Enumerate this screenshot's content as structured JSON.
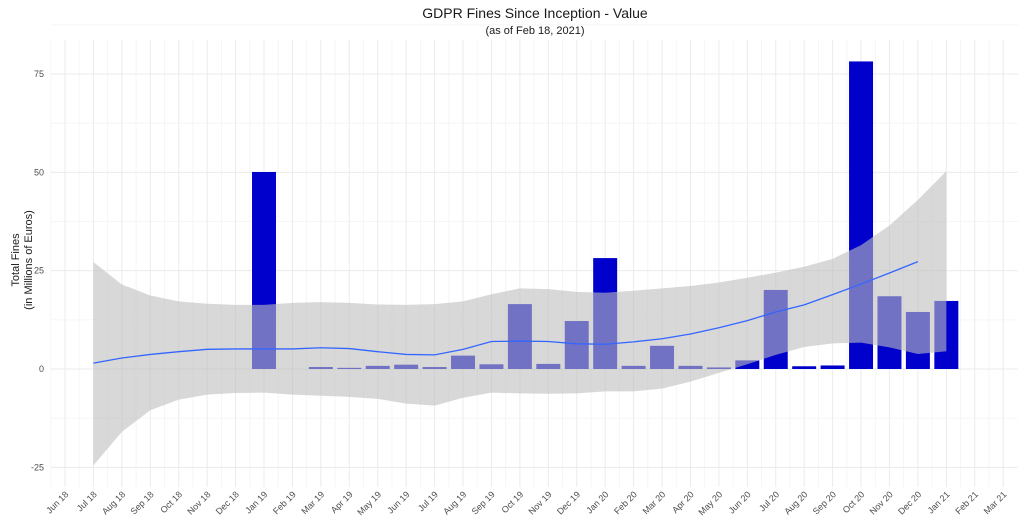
{
  "chart_data": {
    "type": "bar",
    "title": "GDPR Fines Since Inception - Value",
    "subtitle": "(as of Feb 18, 2021)",
    "xlabel": "",
    "ylabel": [
      "Total Fines",
      "(in Millions of Euros)"
    ],
    "ylim": [
      -30,
      80
    ],
    "yticks": [
      -25,
      0,
      25,
      50,
      75
    ],
    "ytick_labels": [
      "-25",
      "0",
      "25",
      "50",
      "75"
    ],
    "grid": true,
    "categories": [
      "Jun 18",
      "Jul 18",
      "Aug 18",
      "Sep 18",
      "Oct 18",
      "Nov 18",
      "Dec 18",
      "Jan 19",
      "Feb 19",
      "Mar 19",
      "Apr 19",
      "May 19",
      "Jun 19",
      "Jul 19",
      "Aug 19",
      "Sep 19",
      "Oct 19",
      "Nov 19",
      "Dec 19",
      "Jan 20",
      "Feb 20",
      "Mar 20",
      "Apr 20",
      "May 20",
      "Jun 20",
      "Jul 20",
      "Aug 20",
      "Sep 20",
      "Oct 20",
      "Nov 20",
      "Dec 20",
      "Jan 21",
      "Feb 21",
      "Mar 21"
    ],
    "series": [
      {
        "name": "Total Fines",
        "type": "bar",
        "color": "#0000cd",
        "values": [
          null,
          null,
          null,
          null,
          null,
          null,
          null,
          50.1,
          null,
          0.5,
          0.3,
          0.8,
          1.1,
          0.5,
          3.4,
          1.2,
          16.5,
          1.3,
          12.2,
          28.2,
          0.8,
          5.9,
          0.8,
          0.4,
          2.2,
          20.1,
          0.7,
          0.9,
          78.2,
          18.5,
          14.5,
          17.3,
          null,
          null
        ]
      },
      {
        "name": "Smoothed trend",
        "type": "line",
        "color": "#3366ff",
        "values": [
          null,
          1.5,
          2.8,
          3.7,
          4.4,
          5.0,
          5.1,
          5.1,
          5.1,
          5.4,
          5.2,
          4.4,
          3.7,
          3.6,
          5.0,
          7.0,
          7.1,
          7.0,
          6.4,
          6.3,
          6.9,
          7.7,
          8.9,
          10.5,
          12.3,
          14.5,
          16.3,
          18.9,
          21.6,
          24.4,
          27.3,
          null,
          null,
          null
        ]
      },
      {
        "name": "Confidence band upper",
        "type": "area_upper",
        "color": "#bebebe",
        "values": [
          null,
          27.2,
          21.5,
          18.7,
          17.2,
          16.6,
          16.3,
          16.3,
          16.8,
          17.0,
          16.8,
          16.4,
          16.3,
          16.5,
          17.2,
          19.0,
          20.5,
          20.3,
          19.6,
          19.4,
          19.9,
          20.5,
          21.1,
          22.0,
          23.2,
          24.5,
          26.0,
          28.0,
          31.5,
          36.5,
          43.0,
          50.3,
          null,
          null
        ]
      },
      {
        "name": "Confidence band lower",
        "type": "area_lower",
        "color": "#bebebe",
        "values": [
          null,
          -24.5,
          -16.0,
          -10.5,
          -7.8,
          -6.5,
          -6.1,
          -6.0,
          -6.5,
          -6.8,
          -7.1,
          -7.6,
          -8.8,
          -9.3,
          -7.3,
          -6.0,
          -6.2,
          -6.3,
          -6.2,
          -5.7,
          -5.7,
          -5.0,
          -3.2,
          -1.0,
          1.2,
          3.6,
          5.6,
          6.5,
          6.7,
          5.5,
          3.8,
          4.5,
          null,
          null
        ]
      }
    ]
  }
}
